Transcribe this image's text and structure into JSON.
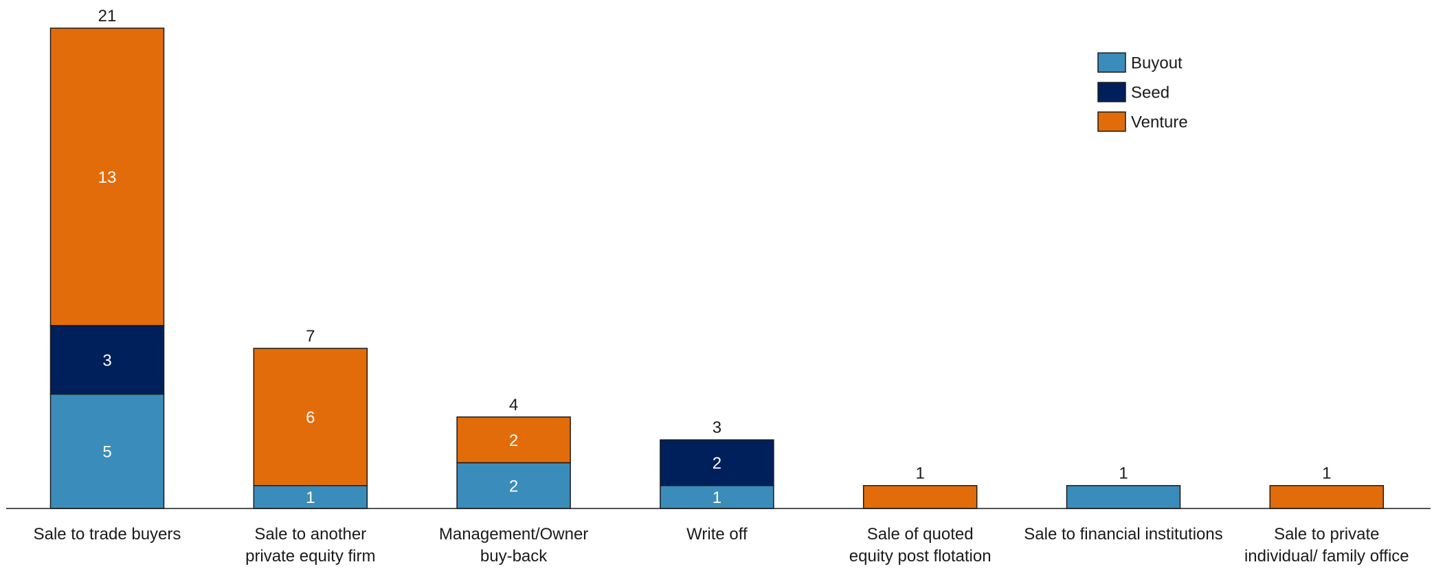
{
  "chart_data": {
    "type": "bar",
    "stacked": true,
    "categories": [
      [
        "Sale to trade buyers"
      ],
      [
        "Sale to another",
        "private equity firm"
      ],
      [
        "Management/Owner",
        "buy-back"
      ],
      [
        "Write off"
      ],
      [
        "Sale of quoted",
        "equity post flotation"
      ],
      [
        "Sale to financial institutions"
      ],
      [
        "Sale to private",
        "individual/ family office"
      ]
    ],
    "series": [
      {
        "name": "Buyout",
        "color": "#3a8dba",
        "values": [
          5,
          1,
          2,
          1,
          0,
          1,
          0
        ]
      },
      {
        "name": "Seed",
        "color": "#00205b",
        "values": [
          3,
          0,
          0,
          2,
          0,
          0,
          0
        ]
      },
      {
        "name": "Venture",
        "color": "#e36c0a",
        "values": [
          13,
          6,
          2,
          0,
          1,
          0,
          1
        ]
      }
    ],
    "segment_labels": [
      [
        "5",
        "1",
        "2",
        "1",
        "",
        "",
        ""
      ],
      [
        "3",
        "",
        "",
        "2",
        "",
        "",
        ""
      ],
      [
        "13",
        "6",
        "2",
        "",
        "",
        "",
        ""
      ]
    ],
    "totals": [
      "21",
      "7",
      "4",
      "3",
      "1",
      "1",
      "1"
    ],
    "ylim": [
      0,
      21
    ],
    "title": "",
    "xlabel": "",
    "ylabel": "",
    "legend_position": "top-right",
    "grid": false
  }
}
